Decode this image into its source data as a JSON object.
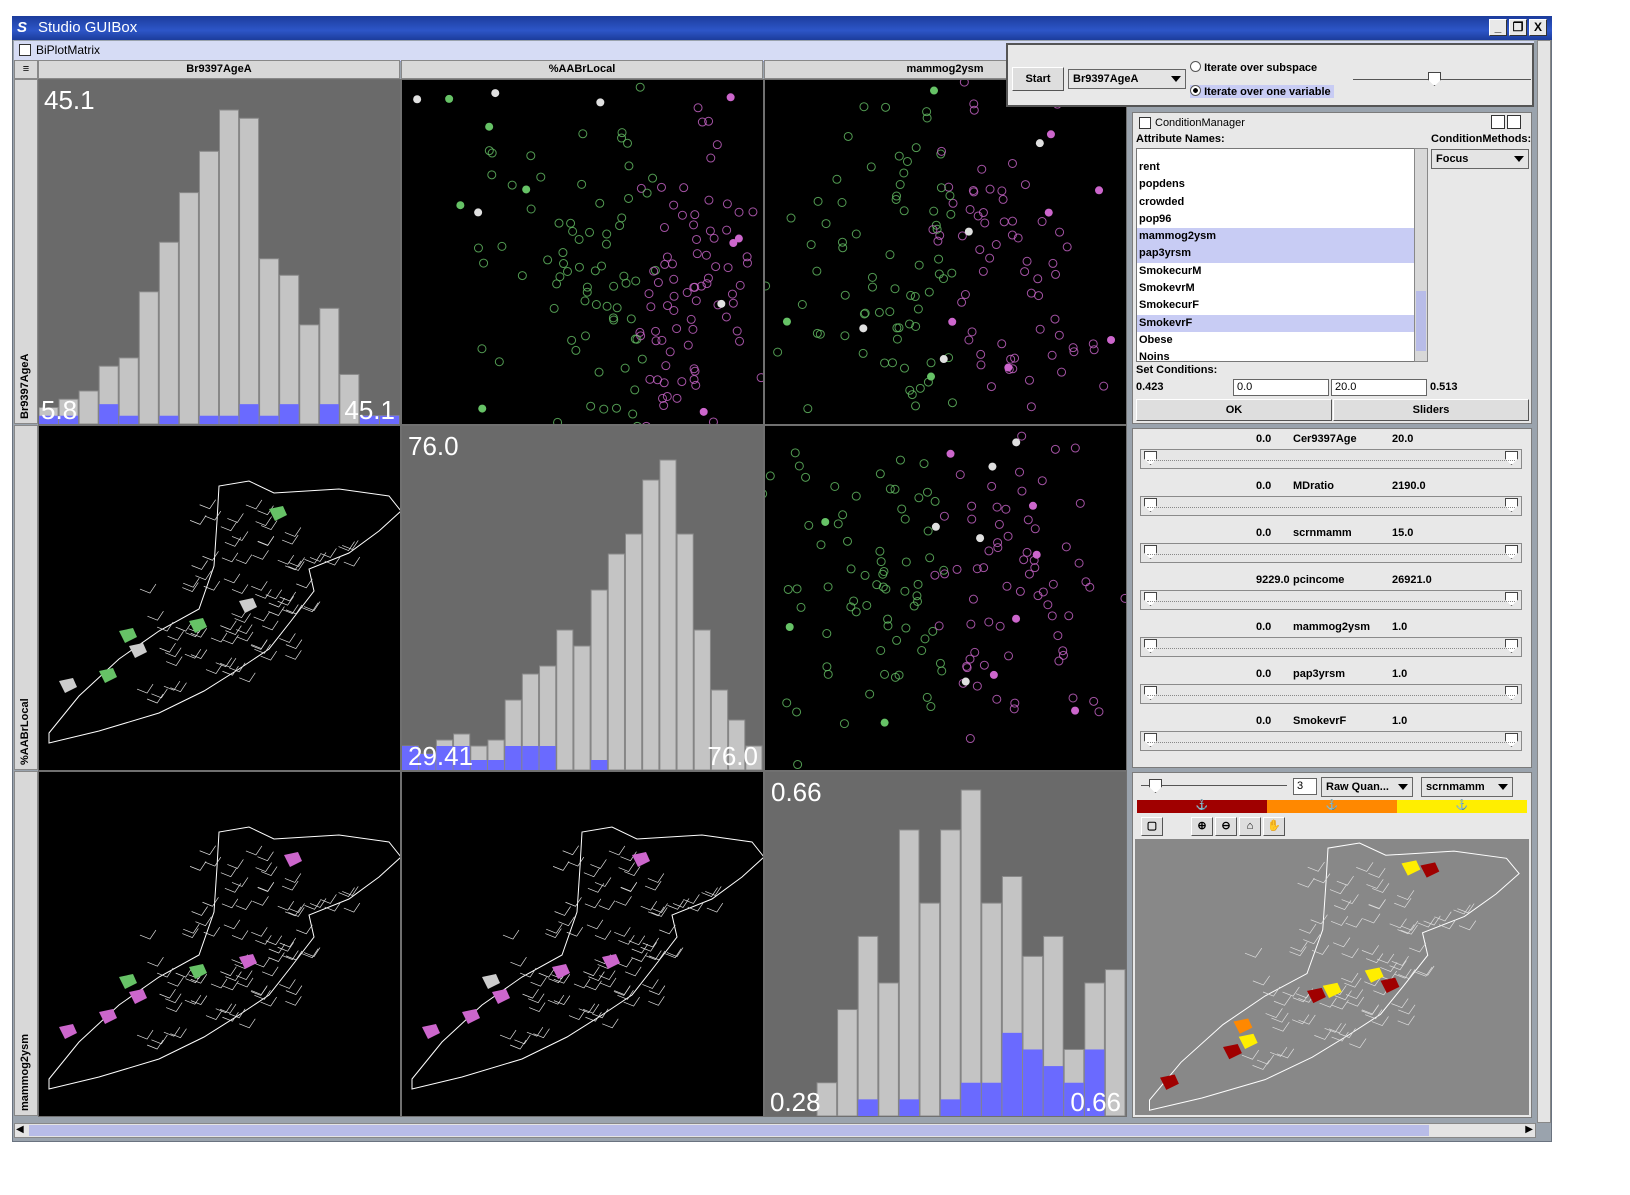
{
  "window": {
    "title": "Studio GUIBox",
    "min": "_",
    "restore": "❐",
    "close": "X"
  },
  "inner_frame": {
    "title": "BiPlotMatrix"
  },
  "matrix": {
    "columns": [
      "Br9397AgeA",
      "%AABrLocal",
      "mammog2ysm"
    ],
    "rows": [
      "Br9397AgeA",
      "%AABrLocal",
      "mammog2ysm"
    ],
    "hist1": {
      "max": "45.1",
      "min": "5.8",
      "max2": "45.1"
    },
    "hist2": {
      "max": "76.0",
      "min": "29.41",
      "max2": "76.0"
    },
    "hist3": {
      "max": "0.66",
      "min": "0.28",
      "max2": "0.66"
    }
  },
  "chart_data": [
    {
      "type": "bar",
      "title": "Br9397AgeA",
      "xlim": [
        5.8,
        45.1
      ],
      "series": [
        {
          "name": "all",
          "values": [
            10,
            15,
            20,
            35,
            40,
            80,
            110,
            140,
            165,
            190,
            185,
            100,
            90,
            60,
            70,
            30,
            5,
            5
          ]
        },
        {
          "name": "selected",
          "values": [
            5,
            5,
            0,
            12,
            5,
            0,
            5,
            0,
            5,
            5,
            12,
            5,
            12,
            0,
            12,
            0,
            5,
            5
          ]
        }
      ]
    },
    {
      "type": "bar",
      "title": "%AABrLocal",
      "xlim": [
        29.41,
        76.0
      ],
      "series": [
        {
          "name": "all",
          "values": [
            12,
            8,
            15,
            18,
            12,
            15,
            35,
            48,
            52,
            70,
            62,
            90,
            108,
            118,
            145,
            155,
            118,
            70,
            40,
            25,
            12
          ]
        },
        {
          "name": "selected",
          "values": [
            12,
            8,
            12,
            12,
            5,
            5,
            12,
            12,
            12,
            0,
            0,
            5,
            0,
            0,
            0,
            0,
            0,
            0,
            0,
            0,
            0
          ]
        }
      ]
    },
    {
      "type": "bar",
      "title": "mammog2ysm",
      "xlim": [
        0.28,
        0.66
      ],
      "series": [
        {
          "name": "all",
          "values": [
            10,
            32,
            54,
            40,
            86,
            64,
            86,
            98,
            64,
            72,
            48,
            54,
            20,
            40,
            44
          ]
        },
        {
          "name": "selected",
          "values": [
            0,
            0,
            5,
            0,
            5,
            0,
            5,
            10,
            10,
            25,
            20,
            15,
            10,
            20,
            0
          ]
        }
      ]
    }
  ],
  "iterate": {
    "start": "Start",
    "variable": "Br9397AgeA",
    "opt1": "Iterate over subspace",
    "opt2": "Iterate over one variable"
  },
  "condition_manager": {
    "title": "ConditionManager",
    "attr_label": "Attribute Names:",
    "methods_label": "ConditionMethods:",
    "method": "Focus",
    "attributes": [
      {
        "name": "rent",
        "sel": false
      },
      {
        "name": "popdens",
        "sel": false
      },
      {
        "name": "crowded",
        "sel": false
      },
      {
        "name": "pop96",
        "sel": false
      },
      {
        "name": "mammog2ysm",
        "sel": true
      },
      {
        "name": "pap3yrsm",
        "sel": true
      },
      {
        "name": "SmokecurM",
        "sel": false
      },
      {
        "name": "SmokevrM",
        "sel": false
      },
      {
        "name": "SmokecurF",
        "sel": false
      },
      {
        "name": "SmokevrF",
        "sel": true
      },
      {
        "name": "Obese",
        "sel": false
      },
      {
        "name": "Noins",
        "sel": false
      }
    ],
    "set_conditions": "Set Conditions:",
    "cond_low": "0.423",
    "cond_in1": "0.0",
    "cond_in2": "20.0",
    "cond_high": "0.513",
    "ok": "OK",
    "sliders": "Sliders"
  },
  "sliders": [
    {
      "min": "0.0",
      "name": "Cer9397Age",
      "max": "20.0"
    },
    {
      "min": "0.0",
      "name": "MDratio",
      "max": "2190.0"
    },
    {
      "min": "0.0",
      "name": "scrnmamm",
      "max": "15.0"
    },
    {
      "min": "9229.0",
      "name": "pcincome",
      "max": "26921.0"
    },
    {
      "min": "0.0",
      "name": "mammog2ysm",
      "max": "1.0"
    },
    {
      "min": "0.0",
      "name": "pap3yrsm",
      "max": "1.0"
    },
    {
      "min": "0.0",
      "name": "SmokevrF",
      "max": "1.0"
    }
  ],
  "map_panel": {
    "classes": "3",
    "method": "Raw Quan...",
    "variable": "scrnmamm"
  },
  "colors": {
    "accent_blue": "#6a6aff",
    "green": "#66c266",
    "magenta": "#cc66cc",
    "dark_red": "#a00000",
    "orange": "#ff8800",
    "yellow": "#ffee00"
  }
}
